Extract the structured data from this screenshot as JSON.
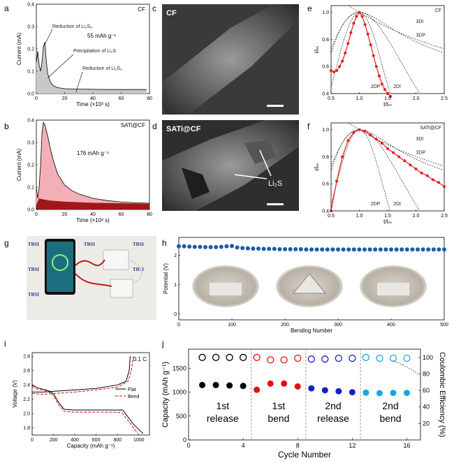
{
  "panel_letters": {
    "a": "a",
    "b": "b",
    "c": "c",
    "d": "d",
    "e": "e",
    "f": "f",
    "g": "g",
    "h": "h",
    "i": "i",
    "j": "j"
  },
  "chart_data": [
    {
      "id": "a",
      "type": "area",
      "sample": "CF",
      "xlabel": "Time (×10³ s)",
      "ylabel": "Current (mA)",
      "xlim": [
        0,
        80
      ],
      "ylim": [
        0,
        0.4
      ],
      "xticks": [
        "0",
        "20",
        "40",
        "60",
        "80"
      ],
      "yticks": [
        "0.0",
        "0.1",
        "0.2",
        "0.3",
        "0.4"
      ],
      "annotations": [
        "Reduction of Li₂S₈",
        "55 mAh g⁻¹",
        "Precipitation of Li₂S",
        "Reduction of Li₂S₆"
      ],
      "series": [
        {
          "x": [
            0,
            1,
            2,
            3,
            4,
            5,
            6,
            7,
            8,
            10,
            12,
            15,
            20,
            30,
            40,
            50,
            60,
            70,
            78
          ],
          "values": [
            0.14,
            0.19,
            0.13,
            0.1,
            0.14,
            0.21,
            0.23,
            0.15,
            0.09,
            0.05,
            0.035,
            0.027,
            0.022,
            0.02,
            0.019,
            0.018,
            0.018,
            0.018,
            0.018
          ]
        }
      ]
    },
    {
      "id": "b",
      "type": "area",
      "sample": "SATi@CF",
      "xlabel": "Time (×10³ s)",
      "ylabel": "Current (mA)",
      "xlim": [
        0,
        80
      ],
      "ylim": [
        0,
        0.4
      ],
      "xticks": [
        "0",
        "20",
        "40",
        "60",
        "80"
      ],
      "yticks": [
        "0.0",
        "0.1",
        "0.2",
        "0.3",
        "0.4"
      ],
      "annotations": [
        "176 mAh g⁻¹"
      ],
      "series": [
        {
          "x": [
            0,
            1,
            2,
            3,
            4,
            5,
            6,
            8,
            10,
            12,
            15,
            20,
            25,
            30,
            35,
            40,
            50,
            60,
            70,
            80
          ],
          "values": [
            0.1,
            0.05,
            0.1,
            0.2,
            0.34,
            0.39,
            0.38,
            0.33,
            0.27,
            0.22,
            0.16,
            0.11,
            0.085,
            0.07,
            0.06,
            0.05,
            0.04,
            0.034,
            0.03,
            0.028
          ]
        }
      ]
    },
    {
      "id": "e",
      "type": "line",
      "sample": "CF",
      "xlabel": "t/tₘ",
      "ylabel": "i/iₘ",
      "xlim": [
        0.5,
        2.5
      ],
      "ylim": [
        0.4,
        1.05
      ],
      "xticks": [
        "0.5",
        "1.0",
        "1.5",
        "2.0",
        "2.5"
      ],
      "yticks": [
        "0.4",
        "0.6",
        "0.8",
        "1.0"
      ],
      "model_labels": [
        "3DI",
        "3DP",
        "2DP",
        "2DI"
      ],
      "x": [
        0.5,
        0.55,
        0.6,
        0.65,
        0.7,
        0.75,
        0.8,
        0.85,
        0.9,
        0.95,
        1.0,
        1.05,
        1.1,
        1.15,
        1.2,
        1.25,
        1.3,
        1.35,
        1.4,
        1.45,
        1.5,
        1.55
      ],
      "series": [
        {
          "values": [
            0.57,
            0.56,
            0.57,
            0.6,
            0.64,
            0.7,
            0.77,
            0.85,
            0.92,
            0.97,
            1.0,
            0.97,
            0.91,
            0.84,
            0.76,
            0.68,
            0.6,
            0.53,
            0.47,
            0.43,
            0.4,
            0.38
          ]
        }
      ]
    },
    {
      "id": "f",
      "type": "line",
      "sample": "SATi@CF",
      "xlabel": "t/tₘ",
      "ylabel": "i/iₘ",
      "xlim": [
        0.5,
        2.5
      ],
      "ylim": [
        0.4,
        1.05
      ],
      "xticks": [
        "0.5",
        "1.0",
        "1.5",
        "2.0",
        "2.5"
      ],
      "yticks": [
        "0.4",
        "0.6",
        "0.8",
        "1.0"
      ],
      "model_labels": [
        "3DI",
        "3DP",
        "2DP",
        "2DI"
      ],
      "x": [
        0.5,
        0.6,
        0.7,
        0.8,
        0.9,
        1.0,
        1.1,
        1.2,
        1.3,
        1.4,
        1.5,
        1.6,
        1.7,
        1.8,
        1.9,
        2.0,
        2.1,
        2.2,
        2.3,
        2.4,
        2.5
      ],
      "series": [
        {
          "values": [
            0.4,
            0.62,
            0.8,
            0.92,
            0.98,
            1.0,
            0.99,
            0.96,
            0.93,
            0.9,
            0.86,
            0.83,
            0.8,
            0.77,
            0.74,
            0.71,
            0.68,
            0.66,
            0.63,
            0.61,
            0.58
          ]
        }
      ]
    },
    {
      "id": "h",
      "type": "scatter",
      "xlabel": "Bending Number",
      "ylabel": "Potential (V)",
      "xlim": [
        0,
        500
      ],
      "ylim": [
        -0.2,
        2.6
      ],
      "xticks": [
        "0",
        "100",
        "200",
        "300",
        "400",
        "500"
      ],
      "yticks": [
        "0",
        "1",
        "2"
      ],
      "series": [
        {
          "x": [
            0,
            10,
            20,
            30,
            40,
            50,
            60,
            70,
            80,
            90,
            100,
            110,
            120,
            130,
            140,
            150,
            160,
            170,
            180,
            190,
            200,
            210,
            220,
            230,
            240,
            250,
            260,
            270,
            280,
            290,
            300,
            310,
            320,
            330,
            340,
            350,
            360,
            370,
            380,
            390,
            400,
            410,
            420,
            430,
            440,
            450,
            460,
            470,
            480,
            490,
            500
          ],
          "values": [
            2.3,
            2.3,
            2.29,
            2.28,
            2.28,
            2.27,
            2.27,
            2.27,
            2.28,
            2.3,
            2.31,
            2.26,
            2.24,
            2.23,
            2.22,
            2.22,
            2.21,
            2.21,
            2.21,
            2.2,
            2.2,
            2.2,
            2.2,
            2.2,
            2.19,
            2.19,
            2.19,
            2.19,
            2.19,
            2.19,
            2.19,
            2.19,
            2.19,
            2.19,
            2.19,
            2.19,
            2.19,
            2.19,
            2.19,
            2.19,
            2.19,
            2.19,
            2.19,
            2.19,
            2.19,
            2.19,
            2.19,
            2.19,
            2.19,
            2.19,
            2.19
          ]
        }
      ]
    },
    {
      "id": "i",
      "type": "line",
      "xlabel": "Capacity (mAh g⁻¹)",
      "ylabel": "Voltage (V)",
      "xlim": [
        0,
        1100
      ],
      "ylim": [
        1.7,
        2.85
      ],
      "xticks": [
        "0",
        "200",
        "400",
        "600",
        "800",
        "1000"
      ],
      "yticks": [
        "1.8",
        "2.0",
        "2.2",
        "2.4",
        "2.6",
        "2.8"
      ],
      "rate": "0.1 C",
      "legend": [
        "Flat",
        "Bend"
      ],
      "series": [
        {
          "name": "Flat",
          "discharge": {
            "x": [
              0,
              50,
              100,
              150,
              200,
              250,
              300,
              400,
              600,
              800,
              850,
              900,
              950,
              1000,
              1040
            ],
            "values": [
              2.4,
              2.36,
              2.34,
              2.32,
              2.28,
              2.15,
              2.06,
              2.05,
              2.05,
              2.05,
              2.05,
              1.95,
              1.85,
              1.78,
              1.72
            ]
          },
          "charge": {
            "x": [
              0,
              100,
              200,
              400,
              600,
              800,
              880,
              910,
              920
            ],
            "values": [
              2.3,
              2.3,
              2.31,
              2.33,
              2.35,
              2.4,
              2.45,
              2.6,
              2.8
            ]
          }
        },
        {
          "name": "Bend",
          "discharge": {
            "x": [
              0,
              50,
              100,
              150,
              200,
              250,
              300,
              400,
              600,
              800,
              850,
              900,
              950,
              990
            ],
            "values": [
              2.38,
              2.34,
              2.33,
              2.31,
              2.25,
              2.12,
              2.03,
              2.02,
              2.02,
              2.02,
              2.0,
              1.9,
              1.8,
              1.72
            ]
          },
          "charge": {
            "x": [
              0,
              100,
              200,
              400,
              600,
              800,
              900,
              930,
              950
            ],
            "values": [
              2.28,
              2.27,
              2.28,
              2.3,
              2.33,
              2.37,
              2.45,
              2.6,
              2.8
            ]
          }
        }
      ]
    },
    {
      "id": "j",
      "type": "scatter",
      "xlabel": "Cycle Number",
      "ylabel": "Capacity (mAh g⁻¹)",
      "ylabel2": "Coulombic Efficiency (%)",
      "xlim": [
        0,
        17
      ],
      "ylim": [
        0,
        1900
      ],
      "ylim2": [
        0,
        110
      ],
      "xticks": [
        "0",
        "4",
        "8",
        "12",
        "16"
      ],
      "yticks": [
        "0",
        "500",
        "1000",
        "1500"
      ],
      "yticks2": [
        "20",
        "40",
        "60",
        "80",
        "100"
      ],
      "stage_labels": [
        [
          "1st",
          "release"
        ],
        [
          "1st",
          "bend"
        ],
        [
          "2nd",
          "release"
        ],
        [
          "2nd",
          "bend"
        ]
      ],
      "stage_colors": [
        "#000000",
        "#e01010",
        "#1520c8",
        "#18a8e0"
      ],
      "dividers": [
        4.6,
        8.6,
        12.6
      ],
      "capacity": {
        "x": [
          1,
          2,
          3,
          4,
          5,
          6,
          7,
          8,
          9,
          10,
          11,
          12,
          13,
          14,
          15,
          16
        ],
        "values": [
          1150,
          1150,
          1140,
          1130,
          1050,
          1180,
          1180,
          1120,
          1080,
          1040,
          1020,
          1000,
          990,
          980,
          985,
          985
        ]
      },
      "efficiency": {
        "x": [
          1,
          2,
          3,
          4,
          5,
          6,
          7,
          8,
          9,
          10,
          11,
          12,
          13,
          14,
          15,
          16
        ],
        "values": [
          100,
          100,
          100,
          100,
          100,
          97,
          97,
          99,
          98,
          98,
          99,
          99,
          100,
          99,
          99,
          99
        ]
      }
    }
  ],
  "image_labels": {
    "c": "CF",
    "d": "SATi@CF",
    "d_callout": "Li₂S",
    "g_brand": "TBSI"
  }
}
